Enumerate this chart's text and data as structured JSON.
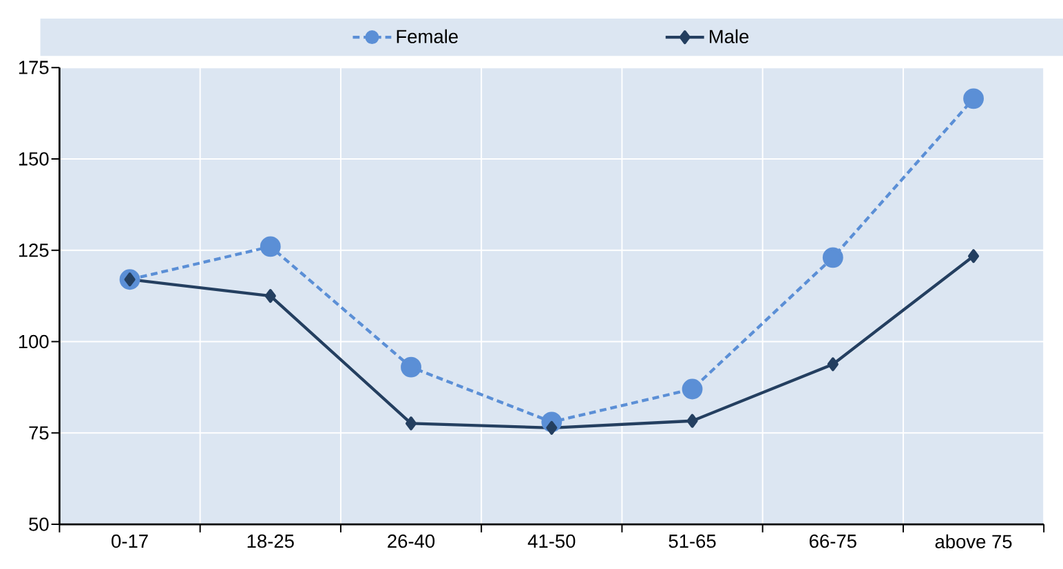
{
  "chart_data": {
    "type": "line",
    "categories": [
      "0-17",
      "18-25",
      "26-40",
      "41-50",
      "51-65",
      "66-75",
      "above 75"
    ],
    "series": [
      {
        "name": "Female",
        "color": "#5b8fd6",
        "marker": "circle",
        "line_style": "dashed",
        "values": [
          117,
          126,
          93,
          78,
          87,
          123,
          166.5
        ]
      },
      {
        "name": "Male",
        "color": "#243f60",
        "marker": "diamond",
        "line_style": "solid",
        "values": [
          117,
          112.5,
          77.6,
          76.4,
          78.3,
          93.8,
          123.4
        ]
      }
    ],
    "ylim": [
      50,
      175
    ],
    "yticks": [
      50,
      75,
      100,
      125,
      150,
      175
    ],
    "grid": true,
    "legend": "top"
  }
}
